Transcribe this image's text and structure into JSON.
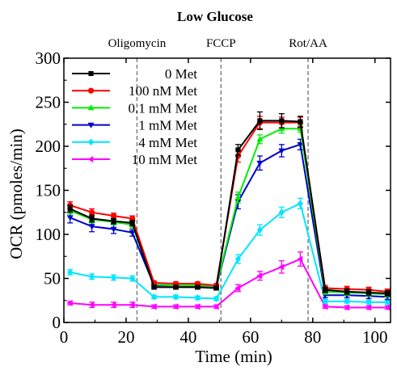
{
  "chart_data": {
    "type": "line",
    "title": "Low Glucose",
    "xlabel": "Time (min)",
    "ylabel": "OCR (pmoles/min)",
    "xlim": [
      0,
      105
    ],
    "ylim": [
      0,
      300
    ],
    "x_ticks": [
      0,
      20,
      40,
      60,
      80,
      100
    ],
    "y_ticks": [
      0,
      50,
      100,
      150,
      200,
      250,
      300
    ],
    "grid": false,
    "legend_position": "top-left",
    "injections": [
      {
        "label": "Oligomycin",
        "x": 23.5
      },
      {
        "label": "FCCP",
        "x": 50.5
      },
      {
        "label": "Rot/AA",
        "x": 78.5
      }
    ],
    "x": [
      2,
      9,
      16,
      22,
      29,
      36,
      43,
      49,
      56,
      63,
      70,
      76,
      84,
      91,
      98,
      104
    ],
    "series": [
      {
        "name": "0 Met",
        "color": "#000000",
        "marker": "square",
        "values": [
          129,
          118,
          115,
          113,
          40,
          40,
          40,
          39,
          196,
          229,
          229,
          228,
          37,
          35,
          34,
          33
        ],
        "errors": [
          4,
          4,
          3,
          3,
          2,
          2,
          2,
          2,
          6,
          10,
          8,
          6,
          3,
          3,
          3,
          3
        ]
      },
      {
        "name": "100 nM Met",
        "color": "#ff0000",
        "marker": "circle",
        "values": [
          133,
          125,
          121,
          118,
          45,
          44,
          44,
          42,
          189,
          227,
          227,
          227,
          39,
          38,
          37,
          35
        ],
        "errors": [
          4,
          4,
          3,
          3,
          2,
          2,
          2,
          2,
          7,
          7,
          6,
          6,
          3,
          3,
          3,
          3
        ]
      },
      {
        "name": "0.1 mM Met",
        "color": "#00ee00",
        "marker": "triangle-up",
        "values": [
          127,
          117,
          114,
          111,
          43,
          42,
          42,
          41,
          142,
          208,
          220,
          220,
          35,
          34,
          33,
          32
        ],
        "errors": [
          4,
          4,
          3,
          3,
          2,
          2,
          2,
          2,
          6,
          5,
          5,
          4,
          3,
          3,
          3,
          3
        ]
      },
      {
        "name": "1 mM Met",
        "color": "#0000cc",
        "marker": "triangle-down",
        "values": [
          119,
          109,
          106,
          102,
          42,
          42,
          41,
          40,
          137,
          181,
          195,
          202,
          31,
          31,
          30,
          29
        ],
        "errors": [
          6,
          6,
          5,
          4,
          2,
          2,
          2,
          2,
          8,
          8,
          7,
          6,
          3,
          3,
          3,
          3
        ]
      },
      {
        "name": "4 mM Met",
        "color": "#00e5ff",
        "marker": "diamond",
        "values": [
          57,
          52,
          51,
          50,
          29,
          29,
          28,
          27,
          72,
          105,
          125,
          135,
          24,
          24,
          23,
          23
        ],
        "errors": [
          3,
          3,
          3,
          3,
          2,
          2,
          2,
          2,
          5,
          6,
          6,
          6,
          2,
          2,
          2,
          2
        ]
      },
      {
        "name": "10 mM Met",
        "color": "#ff00ff",
        "marker": "triangle-left",
        "values": [
          22,
          20,
          20,
          20,
          18,
          18,
          18,
          18,
          39,
          53,
          63,
          72,
          18,
          17,
          17,
          17
        ],
        "errors": [
          2,
          3,
          3,
          3,
          2,
          2,
          2,
          2,
          4,
          5,
          7,
          8,
          2,
          2,
          2,
          2
        ]
      }
    ]
  }
}
